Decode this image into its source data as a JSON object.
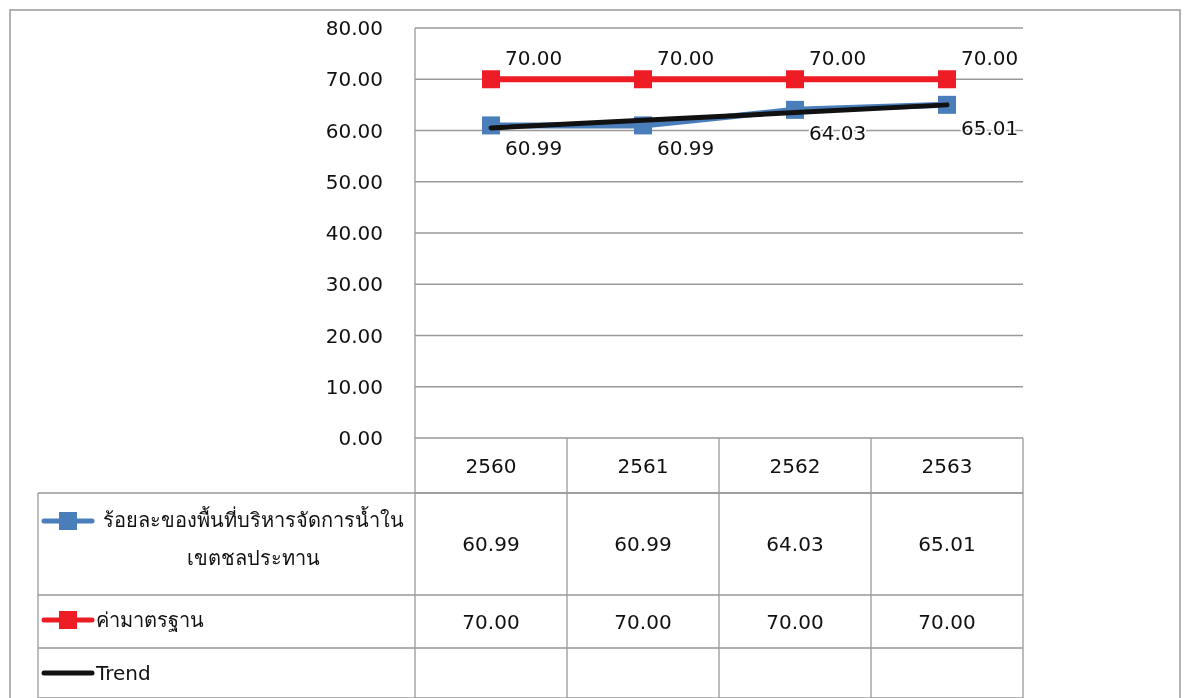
{
  "chart_data": {
    "type": "line",
    "categories": [
      "2560",
      "2561",
      "2562",
      "2563"
    ],
    "ylim": [
      0,
      80
    ],
    "yticks": [
      {
        "value": 0,
        "label": "0.00"
      },
      {
        "value": 10,
        "label": "10.00"
      },
      {
        "value": 20,
        "label": "20.00"
      },
      {
        "value": 30,
        "label": "30.00"
      },
      {
        "value": 40,
        "label": "40.00"
      },
      {
        "value": 50,
        "label": "50.00"
      },
      {
        "value": 60,
        "label": "60.00"
      },
      {
        "value": 70,
        "label": "70.00"
      },
      {
        "value": 80,
        "label": "80.00"
      }
    ],
    "grid": "y",
    "legend": "bottom",
    "line_style": "solid",
    "series": [
      {
        "name": "ร้อยละของพื้นที่บริหารจัดการน้ำในเขตชลประทาน",
        "color": "#4a7ebb",
        "marker": "square",
        "values": [
          60.99,
          60.99,
          64.03,
          65.01
        ],
        "value_labels": [
          "60.99",
          "60.99",
          "64.03",
          "65.01"
        ]
      },
      {
        "name": "ค่ามาตรฐาน",
        "color": "#ee1c25",
        "marker": "square",
        "values": [
          70,
          70,
          70,
          70
        ],
        "value_labels": [
          "70.00",
          "70.00",
          "70.00",
          "70.00"
        ]
      },
      {
        "name": "Trend",
        "color": "#111111",
        "marker": "none",
        "values": [
          60.5,
          62.0,
          63.5,
          65.0
        ]
      }
    ]
  }
}
